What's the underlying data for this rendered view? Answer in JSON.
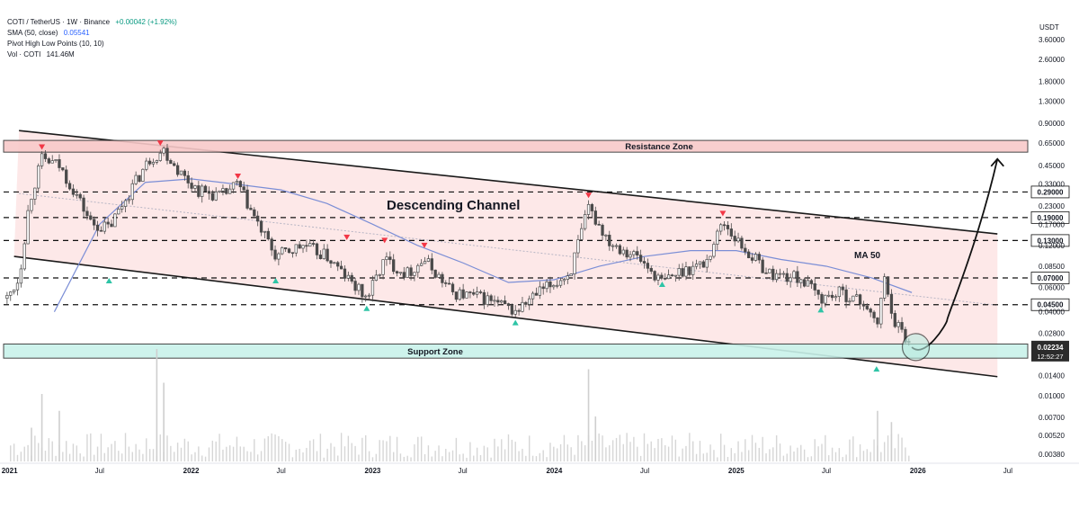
{
  "legend": {
    "symbol": "COTI / TetherUS · 1W · Binance",
    "change": "+0.00042 (+1.92%)",
    "sma_label": "SMA (50, close)",
    "sma_value": "0.05541",
    "pivots_label": "Pivot High Low Points (10, 10)",
    "vol_label": "Vol · COTI",
    "vol_value": "141.46M"
  },
  "colors": {
    "channel_fill": "#fde4e4",
    "resistance_fill": "#f8c9c9",
    "support_fill": "#c9f2ea",
    "candle": "#4a4a4a",
    "sma": "#7b8ed6",
    "pivot_high": "#f23645",
    "pivot_low": "#2ec4a6",
    "volume": "#cfcfcf"
  },
  "chart_data": {
    "type": "candlestick",
    "symbol": "COTI / TetherUS",
    "interval": "1W",
    "exchange": "Binance",
    "y_scale": "log",
    "y_unit": "USDT",
    "y_ticks": [
      3.6,
      2.6,
      1.8,
      1.3,
      0.9,
      0.65,
      0.45,
      0.33,
      0.23,
      0.17,
      0.12,
      0.085,
      0.06,
      0.04,
      0.028,
      0.014,
      0.01,
      0.007,
      0.0052,
      0.0038
    ],
    "y_tick_labels": [
      "3.60000",
      "2.60000",
      "1.80000",
      "1.30000",
      "0.90000",
      "0.65000",
      "0.45000",
      "0.33000",
      "0.23000",
      "0.17000",
      "0.12000",
      "0.08500",
      "0.06000",
      "0.04000",
      "0.02800",
      "0.01400",
      "0.01000",
      "0.00700",
      "0.00520",
      "0.00380"
    ],
    "x_ticks": [
      "2021-01",
      "2021-07",
      "2022-01",
      "2022-07",
      "2023-01",
      "2023-07",
      "2024-01",
      "2024-07",
      "2025-01",
      "2025-07",
      "2026-01",
      "2026-07"
    ],
    "x_tick_labels": [
      "2021",
      "Jul",
      "2022",
      "Jul",
      "2023",
      "Jul",
      "2024",
      "Jul",
      "2025",
      "Jul",
      "2026",
      "Jul"
    ],
    "x_range": [
      "2020-12-20",
      "2026-08-10"
    ],
    "level_lines": [
      {
        "value": 0.29,
        "label": "0.29000"
      },
      {
        "value": 0.19,
        "label": "0.19000"
      },
      {
        "value": 0.13,
        "label": "0.13000"
      },
      {
        "value": 0.07,
        "label": "0.07000"
      },
      {
        "value": 0.045,
        "label": "0.04500"
      }
    ],
    "current_price": {
      "value": 0.02234,
      "label": "0.02234",
      "countdown": "12:52:27"
    },
    "zones": [
      {
        "name": "Resistance Zone",
        "low": 0.56,
        "high": 0.68
      },
      {
        "name": "Support Zone",
        "low": 0.0186,
        "high": 0.0235
      }
    ],
    "channel": {
      "name": "Descending Channel",
      "upper": [
        {
          "date": "2021-01-20",
          "value": 0.8
        },
        {
          "date": "2026-06-10",
          "value": 0.145
        }
      ],
      "lower": [
        {
          "date": "2021-01-10",
          "value": 0.1
        },
        {
          "date": "2026-06-10",
          "value": 0.0137
        }
      ]
    },
    "sma_label": "MA 50",
    "sma": [
      {
        "date": "2021-04-01",
        "value": 0.04
      },
      {
        "date": "2021-07-01",
        "value": 0.17
      },
      {
        "date": "2021-10-01",
        "value": 0.34
      },
      {
        "date": "2022-01-01",
        "value": 0.36
      },
      {
        "date": "2022-04-01",
        "value": 0.33
      },
      {
        "date": "2022-07-01",
        "value": 0.3
      },
      {
        "date": "2022-10-01",
        "value": 0.24
      },
      {
        "date": "2023-01-01",
        "value": 0.17
      },
      {
        "date": "2023-04-01",
        "value": 0.12
      },
      {
        "date": "2023-07-01",
        "value": 0.09
      },
      {
        "date": "2023-10-01",
        "value": 0.065
      },
      {
        "date": "2024-01-01",
        "value": 0.068
      },
      {
        "date": "2024-04-01",
        "value": 0.085
      },
      {
        "date": "2024-07-01",
        "value": 0.1
      },
      {
        "date": "2024-10-01",
        "value": 0.11
      },
      {
        "date": "2025-01-01",
        "value": 0.11
      },
      {
        "date": "2025-04-01",
        "value": 0.095
      },
      {
        "date": "2025-07-01",
        "value": 0.085
      },
      {
        "date": "2025-10-01",
        "value": 0.07
      },
      {
        "date": "2025-12-20",
        "value": 0.055
      }
    ],
    "price_path": [
      {
        "date": "2020-12-27",
        "value": 0.05
      },
      {
        "date": "2021-01-20",
        "value": 0.07
      },
      {
        "date": "2021-02-10",
        "value": 0.25
      },
      {
        "date": "2021-03-07",
        "value": 0.5
      },
      {
        "date": "2021-04-10",
        "value": 0.45
      },
      {
        "date": "2021-05-15",
        "value": 0.28
      },
      {
        "date": "2021-06-15",
        "value": 0.17
      },
      {
        "date": "2021-07-20",
        "value": 0.16
      },
      {
        "date": "2021-09-01",
        "value": 0.3
      },
      {
        "date": "2021-10-10",
        "value": 0.5
      },
      {
        "date": "2021-11-07",
        "value": 0.58
      },
      {
        "date": "2021-12-15",
        "value": 0.38
      },
      {
        "date": "2022-01-15",
        "value": 0.3
      },
      {
        "date": "2022-03-01",
        "value": 0.27
      },
      {
        "date": "2022-04-05",
        "value": 0.33
      },
      {
        "date": "2022-05-15",
        "value": 0.17
      },
      {
        "date": "2022-06-20",
        "value": 0.1
      },
      {
        "date": "2022-08-15",
        "value": 0.12
      },
      {
        "date": "2022-10-01",
        "value": 0.1
      },
      {
        "date": "2022-11-10",
        "value": 0.07
      },
      {
        "date": "2022-12-20",
        "value": 0.05
      },
      {
        "date": "2023-01-25",
        "value": 0.095
      },
      {
        "date": "2023-03-10",
        "value": 0.075
      },
      {
        "date": "2023-04-15",
        "value": 0.095
      },
      {
        "date": "2023-06-10",
        "value": 0.055
      },
      {
        "date": "2023-08-15",
        "value": 0.05
      },
      {
        "date": "2023-10-15",
        "value": 0.04
      },
      {
        "date": "2023-12-01",
        "value": 0.055
      },
      {
        "date": "2024-02-01",
        "value": 0.075
      },
      {
        "date": "2024-03-10",
        "value": 0.22
      },
      {
        "date": "2024-04-20",
        "value": 0.13
      },
      {
        "date": "2024-06-15",
        "value": 0.1
      },
      {
        "date": "2024-08-05",
        "value": 0.065
      },
      {
        "date": "2024-09-15",
        "value": 0.08
      },
      {
        "date": "2024-11-01",
        "value": 0.09
      },
      {
        "date": "2024-12-05",
        "value": 0.18
      },
      {
        "date": "2025-01-10",
        "value": 0.12
      },
      {
        "date": "2025-03-10",
        "value": 0.075
      },
      {
        "date": "2025-05-10",
        "value": 0.07
      },
      {
        "date": "2025-06-20",
        "value": 0.05
      },
      {
        "date": "2025-08-01",
        "value": 0.055
      },
      {
        "date": "2025-09-20",
        "value": 0.045
      },
      {
        "date": "2025-10-10",
        "value": 0.03
      },
      {
        "date": "2025-10-25",
        "value": 0.07
      },
      {
        "date": "2025-11-15",
        "value": 0.035
      },
      {
        "date": "2025-12-20",
        "value": 0.0223
      }
    ],
    "pivot_highs": [
      {
        "date": "2021-03-07",
        "value": 0.6
      },
      {
        "date": "2021-10-31",
        "value": 0.64
      },
      {
        "date": "2022-04-05",
        "value": 0.37
      },
      {
        "date": "2022-11-10",
        "value": 0.135
      },
      {
        "date": "2023-01-25",
        "value": 0.128
      },
      {
        "date": "2023-04-15",
        "value": 0.118
      },
      {
        "date": "2024-03-10",
        "value": 0.27
      },
      {
        "date": "2024-12-05",
        "value": 0.2
      }
    ],
    "pivot_lows": [
      {
        "date": "2021-07-20",
        "value": 0.068
      },
      {
        "date": "2022-06-20",
        "value": 0.068
      },
      {
        "date": "2022-12-20",
        "value": 0.043
      },
      {
        "date": "2023-10-15",
        "value": 0.034
      },
      {
        "date": "2024-08-05",
        "value": 0.064
      },
      {
        "date": "2025-06-20",
        "value": 0.042
      },
      {
        "date": "2025-10-10",
        "value": 0.0158
      }
    ],
    "projection": [
      {
        "date": "2025-12-20",
        "value": 0.0223
      },
      {
        "date": "2026-01-15",
        "value": 0.021
      },
      {
        "date": "2026-03-01",
        "value": 0.035
      },
      {
        "date": "2026-05-01",
        "value": 0.12
      },
      {
        "date": "2026-06-10",
        "value": 0.5
      }
    ],
    "volume": [
      {
        "date": "2021-02-14",
        "value": 0.3
      },
      {
        "date": "2021-03-07",
        "value": 0.6
      },
      {
        "date": "2021-04-11",
        "value": 0.45
      },
      {
        "date": "2021-10-24",
        "value": 1.0
      },
      {
        "date": "2021-11-07",
        "value": 0.7
      },
      {
        "date": "2024-03-10",
        "value": 0.82
      },
      {
        "date": "2024-03-24",
        "value": 0.4
      },
      {
        "date": "2025-10-12",
        "value": 0.45
      },
      {
        "date": "2025-11-09",
        "value": 0.35
      }
    ]
  }
}
